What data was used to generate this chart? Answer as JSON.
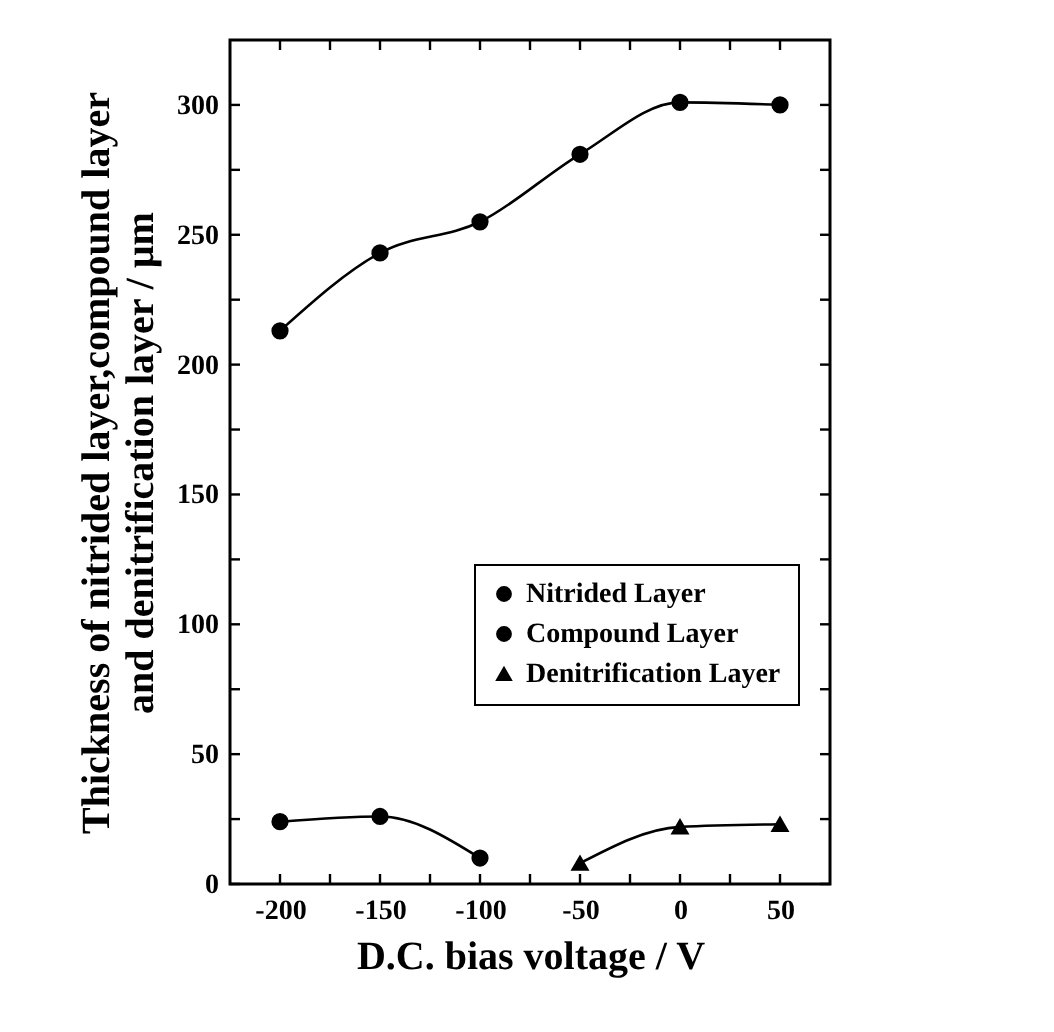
{
  "chart_data": {
    "type": "line",
    "xlabel": "D.C. bias voltage / V",
    "ylabel": "Thickness of nitrided layer,compound layer\nand denitrification layer / μm",
    "xlim": [
      -225,
      75
    ],
    "xticks": [
      -200,
      {
        "value": -175,
        "label": null
      },
      -150,
      {
        "value": -125,
        "label": null
      },
      -100,
      {
        "value": -75,
        "label": null
      },
      -50,
      {
        "value": -25,
        "label": null
      },
      0,
      {
        "value": 25,
        "label": null
      },
      50
    ],
    "ylim": [
      0,
      325
    ],
    "yticks": [
      0,
      {
        "value": 25,
        "label": null
      },
      50,
      {
        "value": 75,
        "label": null
      },
      100,
      {
        "value": 125,
        "label": null
      },
      150,
      {
        "value": 175,
        "label": null
      },
      200,
      {
        "value": 225,
        "label": null
      },
      250,
      {
        "value": 275,
        "label": null
      },
      300
    ],
    "legend": "bottom right",
    "grid": false,
    "series": [
      {
        "name": "Nitrided Layer",
        "color": "#000000",
        "marker": "circle",
        "x": [
          -200,
          -150,
          -100,
          -50,
          0,
          50
        ],
        "values": [
          213,
          243,
          255,
          281,
          301,
          300
        ]
      },
      {
        "name": "Compound Layer",
        "color": "#000000",
        "marker": "circle",
        "x": [
          -200,
          -150,
          -100
        ],
        "values": [
          24,
          26,
          10
        ]
      },
      {
        "name": "Denitrification Layer",
        "color": "#000000",
        "marker": "triangle",
        "x": [
          -50,
          0,
          50
        ],
        "values": [
          8,
          22,
          23
        ]
      }
    ]
  }
}
